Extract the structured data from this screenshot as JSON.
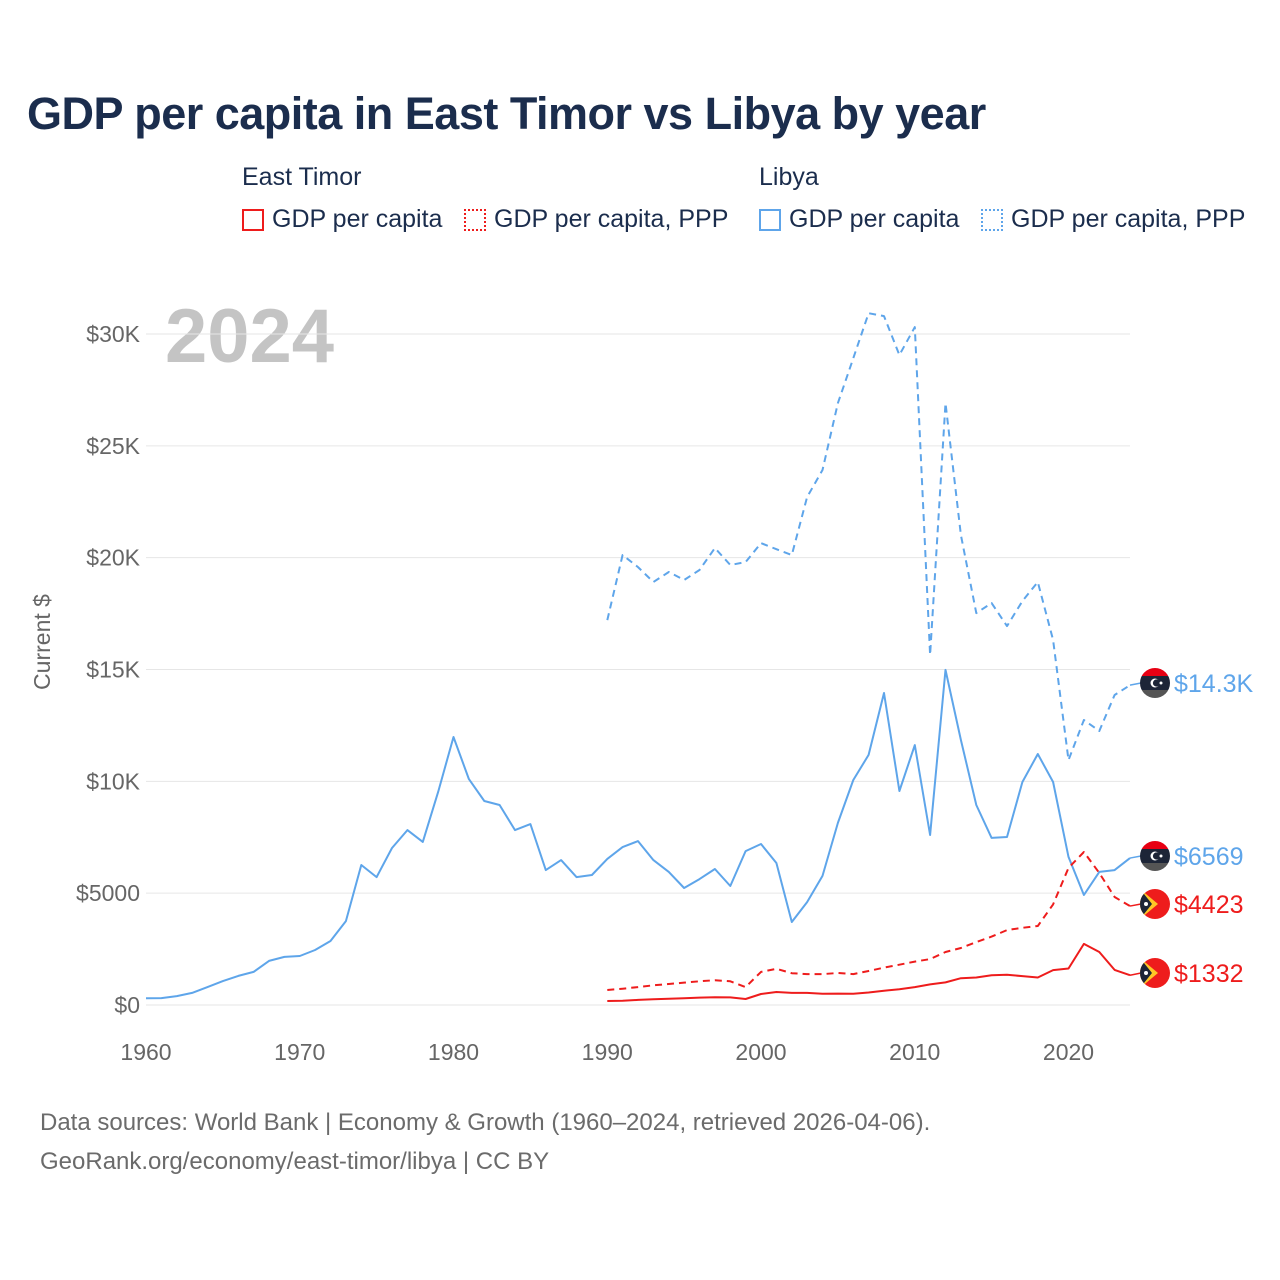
{
  "title": "GDP per capita in East Timor vs Libya by year",
  "legend": {
    "groups": [
      {
        "name": "East Timor",
        "items": [
          "GDP per capita",
          "GDP per capita, PPP"
        ],
        "color": "#ee1c1c"
      },
      {
        "name": "Libya",
        "items": [
          "GDP per capita",
          "GDP per capita, PPP"
        ],
        "color": "#5ea5ea"
      }
    ]
  },
  "footer": {
    "line1": "Data sources: World Bank | Economy & Growth (1960–2024, retrieved 2026-04-06).",
    "line2": "GeoRank.org/economy/east-timor/libya | CC BY"
  },
  "chart_data": {
    "type": "line",
    "title": "GDP per capita in East Timor vs Libya by year",
    "year_watermark": "2024",
    "xlabel": "",
    "ylabel": "Current $",
    "xlim": [
      1960,
      2024
    ],
    "ylim": [
      0,
      31000
    ],
    "x_ticks": [
      "1960",
      "1970",
      "1980",
      "1990",
      "2000",
      "2010",
      "2020"
    ],
    "y_ticks": [
      {
        "v": 0,
        "label": "$0"
      },
      {
        "v": 5000,
        "label": "$5000"
      },
      {
        "v": 10000,
        "label": "$10K"
      },
      {
        "v": 15000,
        "label": "$15K"
      },
      {
        "v": 20000,
        "label": "$20K"
      },
      {
        "v": 25000,
        "label": "$25K"
      },
      {
        "v": 30000,
        "label": "$30K"
      }
    ],
    "grid": true,
    "legend_position": "top",
    "series": [
      {
        "name": "Libya GDP per capita, PPP",
        "country": "Libya",
        "color": "#5ea5ea",
        "dash": true,
        "start": 1990,
        "end_label": "$14.3K",
        "values": [
          17210,
          20120,
          19580,
          18910,
          19360,
          19000,
          19450,
          20430,
          19670,
          19800,
          20650,
          20380,
          20120,
          22710,
          23920,
          26910,
          28920,
          30930,
          30800,
          29060,
          30310,
          15650,
          26910,
          21010,
          17520,
          17970,
          16940,
          18060,
          18910,
          16320,
          10950,
          12740,
          12250,
          13860,
          14300
        ]
      },
      {
        "name": "Libya GDP per capita",
        "country": "Libya",
        "color": "#5ea5ea",
        "dash": false,
        "start": 1960,
        "end_label": "$6569",
        "values": [
          300,
          310,
          400,
          540,
          800,
          1070,
          1300,
          1480,
          1970,
          2150,
          2190,
          2460,
          2860,
          3750,
          6260,
          5720,
          7020,
          7820,
          7290,
          9520,
          11980,
          10100,
          9120,
          8940,
          7820,
          8090,
          6030,
          6480,
          5720,
          5810,
          6530,
          7060,
          7330,
          6480,
          5950,
          5230,
          5630,
          6080,
          5320,
          6880,
          7200,
          6350,
          3710,
          4600,
          5770,
          8140,
          10060,
          11180,
          13950,
          9570,
          11620,
          7600,
          14980,
          11850,
          8940,
          7470,
          7510,
          9970,
          11220,
          9970,
          6620,
          4920,
          5950,
          6030,
          6569
        ]
      },
      {
        "name": "East Timor GDP per capita, PPP",
        "country": "East Timor",
        "color": "#ee1c1c",
        "dash": true,
        "start": 1990,
        "end_label": "$4423",
        "values": [
          670,
          730,
          800,
          880,
          940,
          1000,
          1060,
          1110,
          1060,
          800,
          1480,
          1620,
          1420,
          1380,
          1380,
          1430,
          1380,
          1520,
          1670,
          1800,
          1940,
          2050,
          2370,
          2550,
          2810,
          3060,
          3350,
          3450,
          3530,
          4500,
          6130,
          6840,
          5900,
          4830,
          4423
        ]
      },
      {
        "name": "East Timor GDP per capita",
        "country": "East Timor",
        "color": "#ee1c1c",
        "dash": false,
        "start": 1990,
        "end_label": "$1332",
        "values": [
          180,
          190,
          230,
          260,
          280,
          300,
          330,
          350,
          340,
          270,
          490,
          580,
          540,
          540,
          500,
          510,
          500,
          560,
          640,
          700,
          800,
          920,
          1010,
          1200,
          1230,
          1330,
          1350,
          1290,
          1230,
          1560,
          1630,
          2730,
          2370,
          1570,
          1332
        ]
      }
    ]
  }
}
